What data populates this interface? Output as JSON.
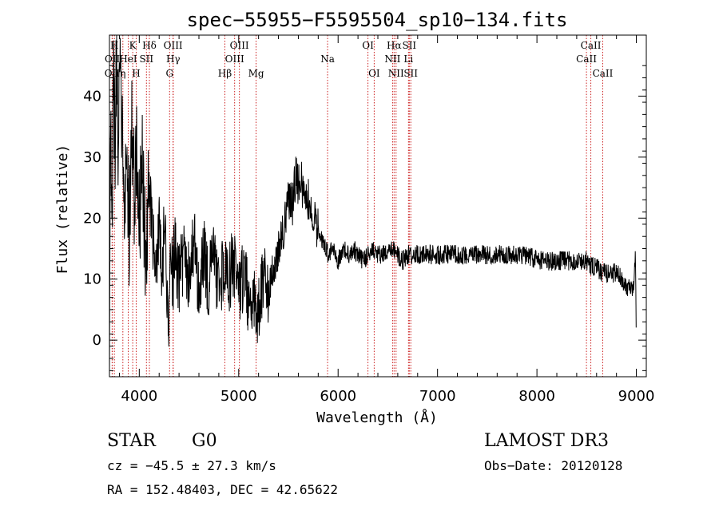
{
  "chart_data": {
    "type": "line",
    "title": "spec−55955−F5595504_sp10−134.fits",
    "xlabel": "Wavelength (Å)",
    "ylabel": "Flux (relative)",
    "xlim": [
      3700,
      9100
    ],
    "ylim": [
      -6,
      50
    ],
    "x_ticks": [
      4000,
      5000,
      6000,
      7000,
      8000,
      9000
    ],
    "y_ticks": [
      0,
      10,
      20,
      30,
      40
    ],
    "line_color": "#000000",
    "marker_color": "#cc2222",
    "anchors": [
      [
        3700,
        2
      ],
      [
        3710,
        35
      ],
      [
        3725,
        20
      ],
      [
        3740,
        45
      ],
      [
        3755,
        30
      ],
      [
        3770,
        46
      ],
      [
        3790,
        32
      ],
      [
        3810,
        42
      ],
      [
        3830,
        36
      ],
      [
        3850,
        26
      ],
      [
        3870,
        30
      ],
      [
        3900,
        18
      ],
      [
        3920,
        36
      ],
      [
        3940,
        28
      ],
      [
        3960,
        22
      ],
      [
        3975,
        34
      ],
      [
        3990,
        26
      ],
      [
        4010,
        22
      ],
      [
        4030,
        28
      ],
      [
        4050,
        20
      ],
      [
        4070,
        8
      ],
      [
        4090,
        24
      ],
      [
        4110,
        22
      ],
      [
        4140,
        16
      ],
      [
        4170,
        12
      ],
      [
        4200,
        18
      ],
      [
        4230,
        12
      ],
      [
        4260,
        20
      ],
      [
        4290,
        2
      ],
      [
        4305,
        8
      ],
      [
        4320,
        14
      ],
      [
        4340,
        10
      ],
      [
        4360,
        18
      ],
      [
        4380,
        12
      ],
      [
        4400,
        10
      ],
      [
        4450,
        14
      ],
      [
        4500,
        10
      ],
      [
        4550,
        16
      ],
      [
        4600,
        8
      ],
      [
        4650,
        14
      ],
      [
        4700,
        9
      ],
      [
        4750,
        15
      ],
      [
        4800,
        7
      ],
      [
        4850,
        12
      ],
      [
        4900,
        10
      ],
      [
        4950,
        13
      ],
      [
        5000,
        7
      ],
      [
        5050,
        11
      ],
      [
        5100,
        6
      ],
      [
        5150,
        8
      ],
      [
        5200,
        4
      ],
      [
        5250,
        10
      ],
      [
        5300,
        7
      ],
      [
        5350,
        12
      ],
      [
        5400,
        15
      ],
      [
        5450,
        18
      ],
      [
        5500,
        23
      ],
      [
        5540,
        22
      ],
      [
        5580,
        28
      ],
      [
        5600,
        25
      ],
      [
        5620,
        27
      ],
      [
        5650,
        24
      ],
      [
        5700,
        23
      ],
      [
        5750,
        20
      ],
      [
        5800,
        18
      ],
      [
        5850,
        16
      ],
      [
        5900,
        14
      ],
      [
        5950,
        15
      ],
      [
        6000,
        13
      ],
      [
        6050,
        15
      ],
      [
        6100,
        14
      ],
      [
        6150,
        15
      ],
      [
        6200,
        14
      ],
      [
        6250,
        13
      ],
      [
        6300,
        14
      ],
      [
        6350,
        15
      ],
      [
        6400,
        14
      ],
      [
        6450,
        14
      ],
      [
        6500,
        14
      ],
      [
        6550,
        15
      ],
      [
        6600,
        14
      ],
      [
        6650,
        13
      ],
      [
        6700,
        14
      ],
      [
        6750,
        14
      ],
      [
        6800,
        14
      ],
      [
        6900,
        14
      ],
      [
        7000,
        14
      ],
      [
        7100,
        14
      ],
      [
        7200,
        14
      ],
      [
        7300,
        14
      ],
      [
        7400,
        14
      ],
      [
        7500,
        14
      ],
      [
        7600,
        14
      ],
      [
        7700,
        14
      ],
      [
        7800,
        14
      ],
      [
        7900,
        14
      ],
      [
        8000,
        13
      ],
      [
        8100,
        13
      ],
      [
        8200,
        13
      ],
      [
        8300,
        13
      ],
      [
        8400,
        13
      ],
      [
        8500,
        13
      ],
      [
        8550,
        12
      ],
      [
        8600,
        12
      ],
      [
        8650,
        11
      ],
      [
        8700,
        11
      ],
      [
        8750,
        11
      ],
      [
        8800,
        11
      ],
      [
        8850,
        10
      ],
      [
        8900,
        9
      ],
      [
        8950,
        8
      ],
      [
        8970,
        8
      ],
      [
        8990,
        14
      ],
      [
        9000,
        0
      ]
    ],
    "spectral_lines": [
      {
        "name": "OII",
        "wavelength": 3727,
        "row": 2
      },
      {
        "name": "OII",
        "wavelength": 3729,
        "row": 1
      },
      {
        "name": "H",
        "wavelength": 3750,
        "row": 0
      },
      {
        "name": "η",
        "wavelength": 3835,
        "row": 2
      },
      {
        "name": "HeI",
        "wavelength": 3889,
        "row": 1
      },
      {
        "name": "K",
        "wavelength": 3934,
        "row": 0
      },
      {
        "name": "H",
        "wavelength": 3969,
        "row": 2
      },
      {
        "name": "SII",
        "wavelength": 4072,
        "row": 1
      },
      {
        "name": "Hδ",
        "wavelength": 4102,
        "row": 0
      },
      {
        "name": "G",
        "wavelength": 4305,
        "row": 2
      },
      {
        "name": "OIII",
        "wavelength": 4340,
        "row": 0
      },
      {
        "name": "Hγ",
        "wavelength": 4341,
        "row": 1
      },
      {
        "name": "Hβ",
        "wavelength": 4861,
        "row": 2
      },
      {
        "name": "OIII",
        "wavelength": 4959,
        "row": 1
      },
      {
        "name": "OIII",
        "wavelength": 5007,
        "row": 0
      },
      {
        "name": "Mg",
        "wavelength": 5175,
        "row": 2
      },
      {
        "name": "Na",
        "wavelength": 5894,
        "row": 1
      },
      {
        "name": "OI",
        "wavelength": 6300,
        "row": 0
      },
      {
        "name": "OI",
        "wavelength": 6363,
        "row": 2
      },
      {
        "name": "NII",
        "wavelength": 6548,
        "row": 1
      },
      {
        "name": "Hα",
        "wavelength": 6563,
        "row": 0
      },
      {
        "name": "NII",
        "wavelength": 6583,
        "row": 2
      },
      {
        "name": "Li",
        "wavelength": 6708,
        "row": 1
      },
      {
        "name": "SII",
        "wavelength": 6716,
        "row": 0
      },
      {
        "name": "SII",
        "wavelength": 6731,
        "row": 2
      },
      {
        "name": "CaII",
        "wavelength": 8498,
        "row": 1
      },
      {
        "name": "CaII",
        "wavelength": 8542,
        "row": 0
      },
      {
        "name": "CaII",
        "wavelength": 8662,
        "row": 2
      }
    ]
  },
  "info": {
    "object_class": "STAR",
    "subclass": "G0",
    "survey": "LAMOST DR3",
    "cz": "cz = −45.5 ± 27.3 km/s",
    "obs_date": "Obs−Date: 20120128",
    "ra_dec": "RA = 152.48403, DEC =  42.65622"
  }
}
